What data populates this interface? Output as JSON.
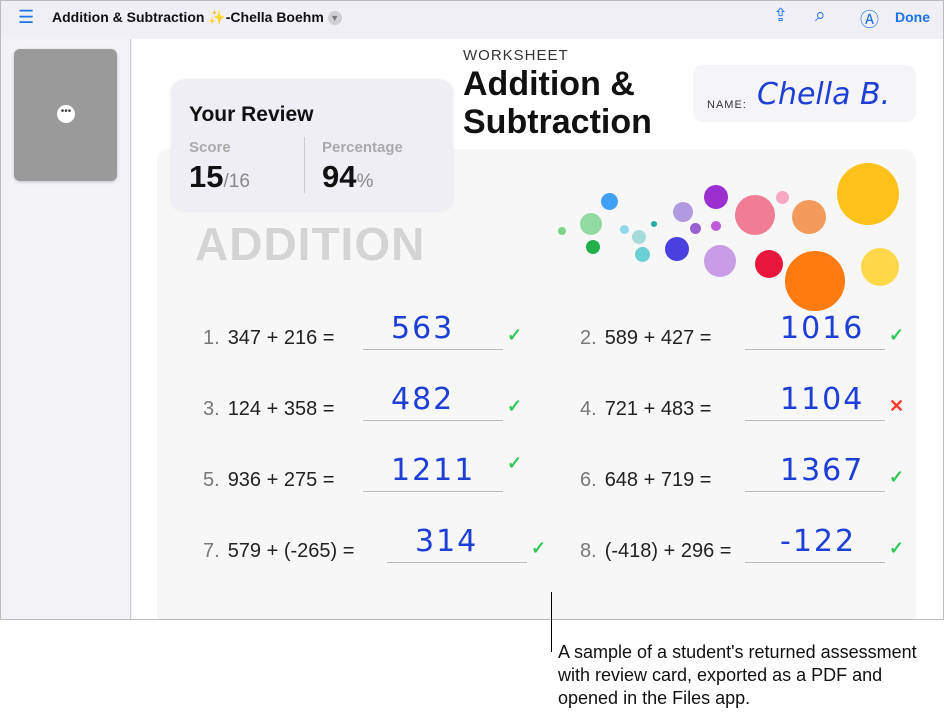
{
  "toolbar": {
    "title": "Addition & Subtraction ✨-Chella Boehm",
    "done": "Done",
    "icons": [
      "list-icon",
      "share-icon",
      "search-icon",
      "markup-icon"
    ]
  },
  "sidebar": {
    "more": "•••"
  },
  "worksheet": {
    "label": "WORKSHEET",
    "title": "Addition & Subtraction",
    "name_label": "NAME:",
    "name_value": "Chella B.",
    "section": "ADDITION",
    "problems": [
      {
        "num": "1.",
        "expr": "347 + 216 =",
        "answer": "563",
        "correct": true
      },
      {
        "num": "2.",
        "expr": "589 + 427 =",
        "answer": "1016",
        "correct": true
      },
      {
        "num": "3.",
        "expr": "124 + 358 =",
        "answer": "482",
        "correct": true
      },
      {
        "num": "4.",
        "expr": "721 + 483 =",
        "answer": "1104",
        "correct": false
      },
      {
        "num": "5.",
        "expr": "936 + 275 =",
        "answer": "1211",
        "correct": true
      },
      {
        "num": "6.",
        "expr": "648 + 719 =",
        "answer": "1367",
        "correct": true
      },
      {
        "num": "7.",
        "expr": "579 + (-265) =",
        "answer": "314",
        "correct": true
      },
      {
        "num": "8.",
        "expr": "(-418) + 296 =",
        "answer": "-122",
        "correct": true
      }
    ]
  },
  "review": {
    "title": "Your Review",
    "score_label": "Score",
    "score": "15",
    "score_total": "/16",
    "pct_label": "Percentage",
    "pct": "94",
    "pct_unit": "%"
  },
  "colors": {
    "accent": "#1a73e8",
    "ink": "#1d3fd6",
    "correct": "#34c759",
    "wrong": "#ff3b30"
  },
  "caption": "A sample of a student's returned assessment with review card, exported as a PDF and opened in the Files app."
}
